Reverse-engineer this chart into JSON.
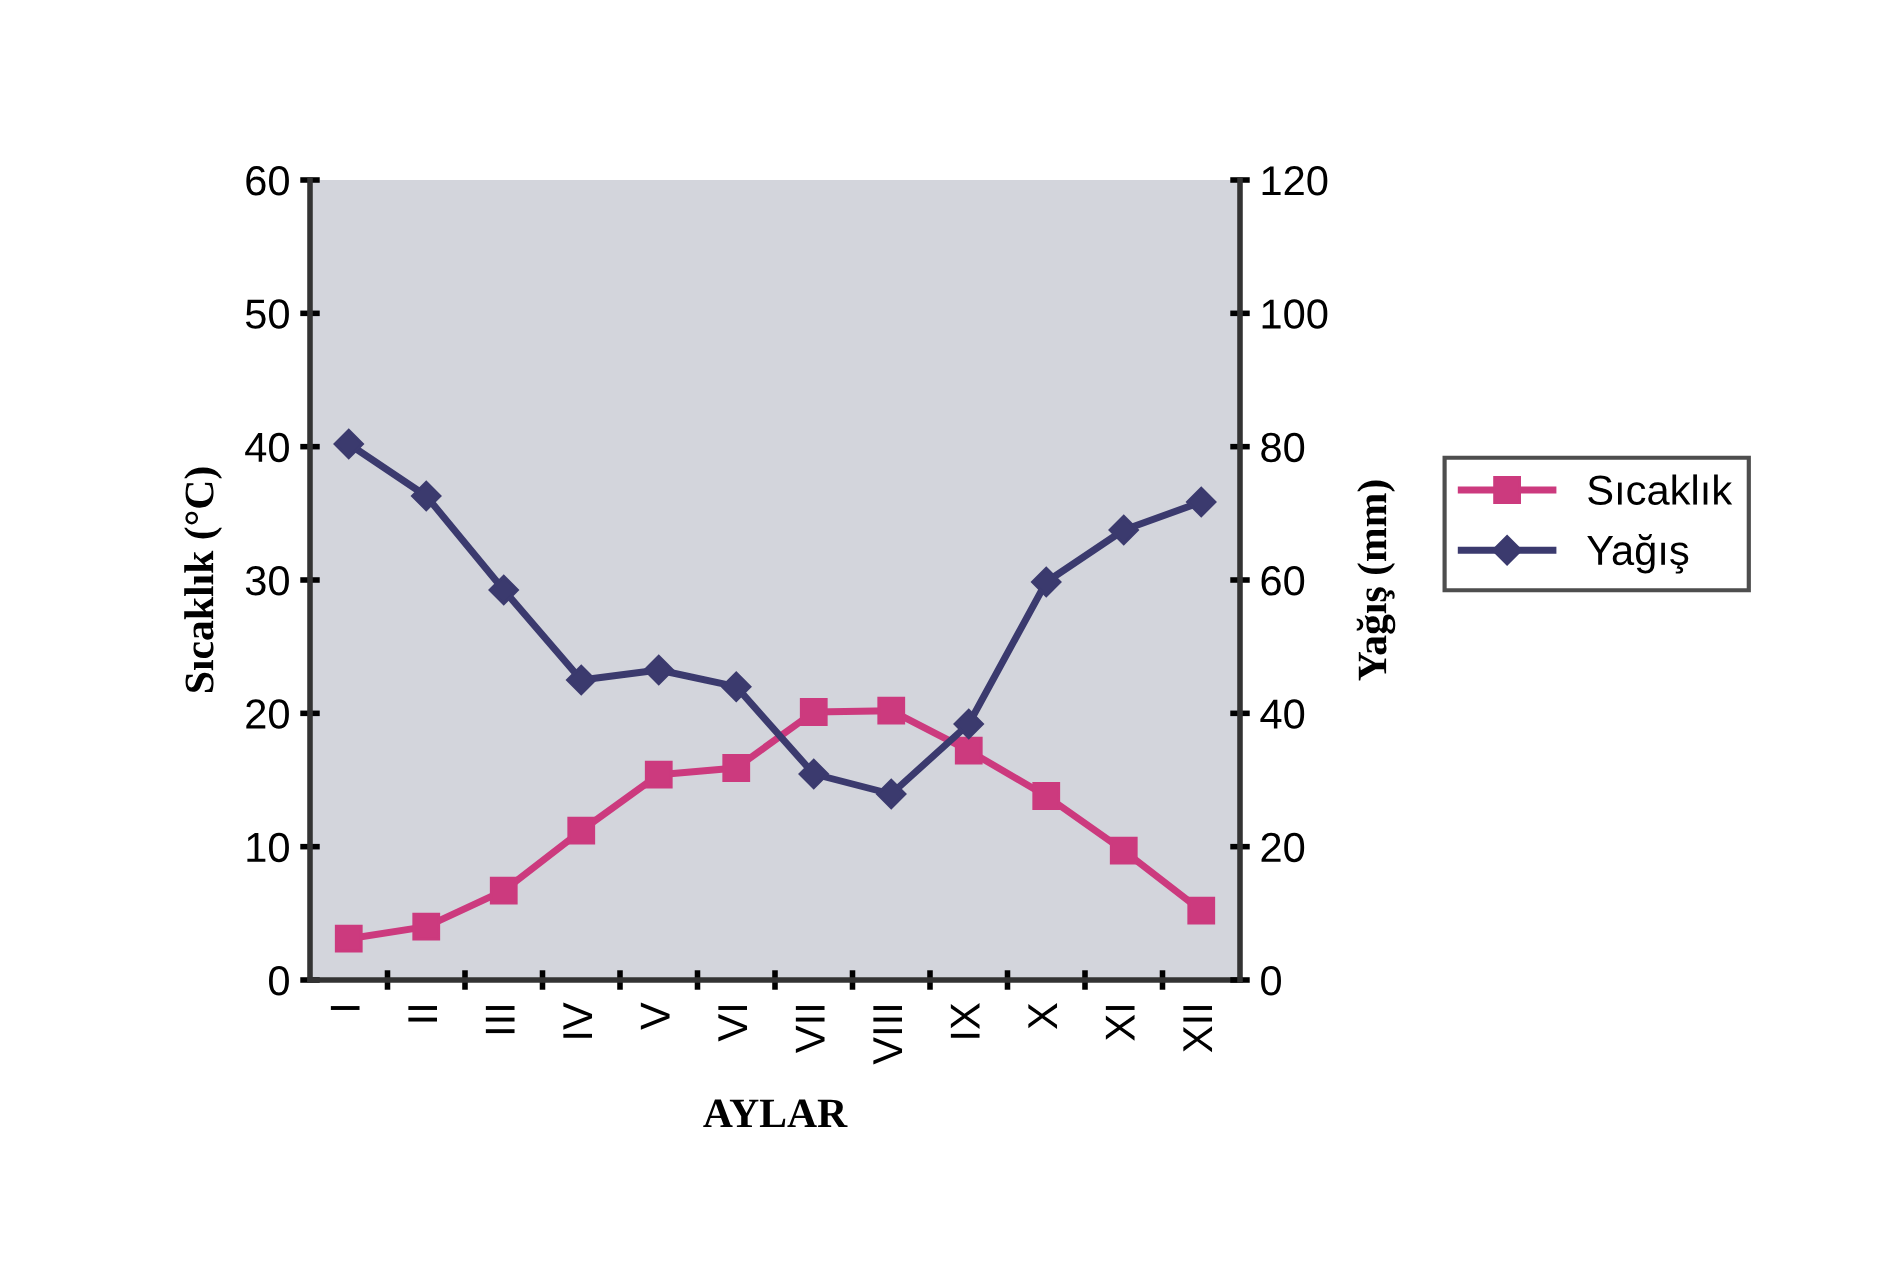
{
  "chart_data": {
    "type": "line",
    "categories": [
      "I",
      "II",
      "III",
      "IV",
      "V",
      "VI",
      "VII",
      "VIII",
      "IX",
      "X",
      "XI",
      "XII"
    ],
    "series": [
      {
        "name": "Sıcaklık",
        "color": "#cc3a7e",
        "marker": "square",
        "values": [
          3.1,
          4.0,
          6.7,
          11.2,
          15.4,
          15.9,
          20.1,
          20.2,
          17.2,
          13.8,
          9.7,
          5.2
        ]
      },
      {
        "name": "Yağış",
        "color": "#3b3a6e",
        "marker": "diamond",
        "axis": "y2",
        "values": [
          80.4,
          72.6,
          58.5,
          45.0,
          46.5,
          44.0,
          30.9,
          27.9,
          38.4,
          59.7,
          67.5,
          71.7
        ]
      }
    ],
    "xlabel": "AYLAR",
    "ylabel": "Sıcaklık (°C)",
    "y2label": "Yağış (mm)",
    "ylim": [
      0,
      60
    ],
    "yticks": [
      0,
      10,
      20,
      30,
      40,
      50,
      60
    ],
    "y2lim": [
      0,
      120
    ],
    "y2ticks": [
      0,
      20,
      40,
      60,
      80,
      100,
      120
    ],
    "grid": false,
    "legend": "right",
    "line_style": "solid"
  }
}
